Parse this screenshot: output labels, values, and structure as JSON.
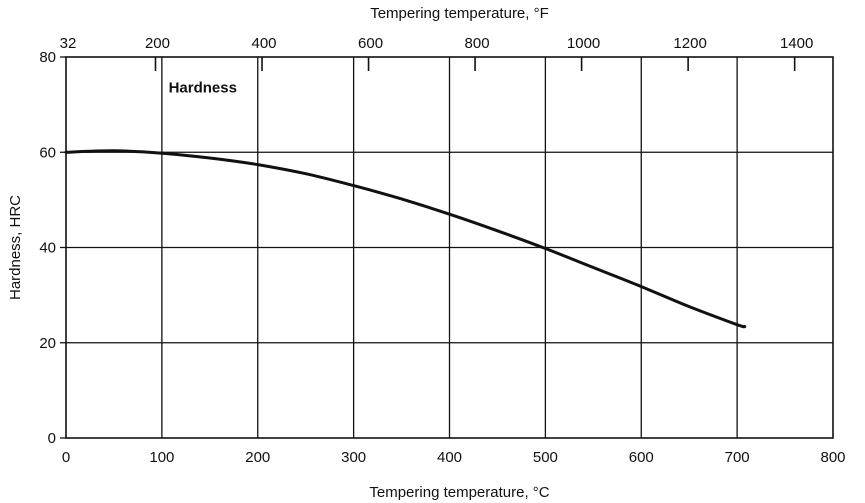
{
  "chart_data": {
    "type": "line",
    "title": "",
    "xlabel": "Tempering temperature, °C",
    "ylabel": "Hardness, HRC",
    "x2label": "Tempering temperature, °F",
    "xlim": [
      0,
      800
    ],
    "ylim": [
      0,
      80
    ],
    "x_ticks": [
      0,
      100,
      200,
      300,
      400,
      500,
      600,
      700,
      800
    ],
    "y_ticks": [
      0,
      20,
      40,
      60,
      80
    ],
    "x2_ticks": [
      32,
      200,
      400,
      600,
      800,
      1000,
      1200,
      1400
    ],
    "grid": true,
    "series": [
      {
        "name": "Hardness",
        "x": [
          0,
          50,
          100,
          150,
          200,
          250,
          300,
          350,
          400,
          450,
          500,
          550,
          600,
          650,
          700,
          708
        ],
        "y": [
          60,
          60.3,
          59.8,
          58.8,
          57.4,
          55.5,
          53,
          50.2,
          47,
          43.5,
          39.8,
          35.8,
          31.8,
          27.6,
          23.8,
          23.4
        ]
      }
    ],
    "colors": {
      "line": "#111111",
      "grid": "#111111",
      "background": "#ffffff"
    }
  }
}
